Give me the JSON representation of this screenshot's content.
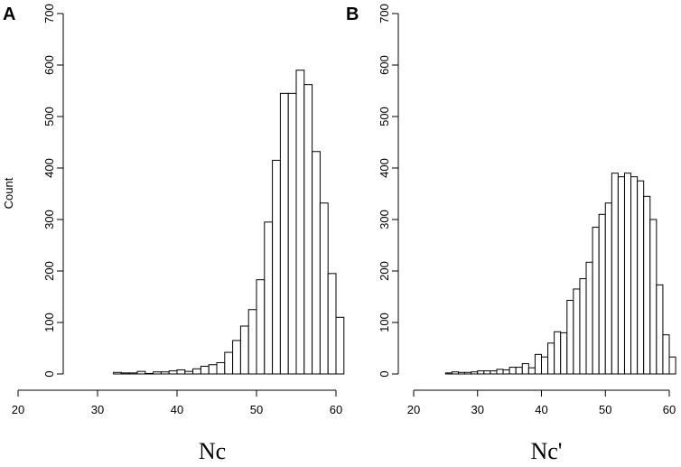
{
  "chart_data": [
    {
      "type": "bar",
      "panel_label": "A",
      "xlabel": "Nc",
      "ylabel": "Count",
      "xlim": [
        20,
        61
      ],
      "ylim": [
        0,
        700
      ],
      "xticks": [
        "20",
        "30",
        "40",
        "50",
        "60"
      ],
      "yticks": [
        "0",
        "100",
        "200",
        "300",
        "400",
        "500",
        "600",
        "700"
      ],
      "bin_width": 1,
      "bins": [
        {
          "x0": 32,
          "count": 3
        },
        {
          "x0": 33,
          "count": 2
        },
        {
          "x0": 34,
          "count": 2
        },
        {
          "x0": 35,
          "count": 5
        },
        {
          "x0": 36,
          "count": 1
        },
        {
          "x0": 37,
          "count": 4
        },
        {
          "x0": 38,
          "count": 4
        },
        {
          "x0": 39,
          "count": 6
        },
        {
          "x0": 40,
          "count": 8
        },
        {
          "x0": 41,
          "count": 5
        },
        {
          "x0": 42,
          "count": 10
        },
        {
          "x0": 43,
          "count": 15
        },
        {
          "x0": 44,
          "count": 18
        },
        {
          "x0": 45,
          "count": 22
        },
        {
          "x0": 46,
          "count": 42
        },
        {
          "x0": 47,
          "count": 65
        },
        {
          "x0": 48,
          "count": 93
        },
        {
          "x0": 49,
          "count": 125
        },
        {
          "x0": 50,
          "count": 183
        },
        {
          "x0": 51,
          "count": 295
        },
        {
          "x0": 52,
          "count": 415
        },
        {
          "x0": 53,
          "count": 545
        },
        {
          "x0": 54,
          "count": 545
        },
        {
          "x0": 55,
          "count": 590
        },
        {
          "x0": 56,
          "count": 562
        },
        {
          "x0": 57,
          "count": 432
        },
        {
          "x0": 58,
          "count": 332
        },
        {
          "x0": 59,
          "count": 195
        },
        {
          "x0": 60,
          "count": 110
        }
      ]
    },
    {
      "type": "bar",
      "panel_label": "B",
      "xlabel": "Nc'",
      "ylabel": "",
      "xlim": [
        20,
        61
      ],
      "ylim": [
        0,
        700
      ],
      "xticks": [
        "20",
        "30",
        "40",
        "50",
        "60"
      ],
      "yticks": [
        "0",
        "100",
        "200",
        "300",
        "400",
        "500",
        "600",
        "700"
      ],
      "bin_width": 1,
      "bins": [
        {
          "x0": 25,
          "count": 2
        },
        {
          "x0": 26,
          "count": 4
        },
        {
          "x0": 27,
          "count": 3
        },
        {
          "x0": 28,
          "count": 3
        },
        {
          "x0": 29,
          "count": 4
        },
        {
          "x0": 30,
          "count": 6
        },
        {
          "x0": 31,
          "count": 6
        },
        {
          "x0": 32,
          "count": 6
        },
        {
          "x0": 33,
          "count": 9
        },
        {
          "x0": 34,
          "count": 8
        },
        {
          "x0": 35,
          "count": 13
        },
        {
          "x0": 36,
          "count": 13
        },
        {
          "x0": 37,
          "count": 20
        },
        {
          "x0": 38,
          "count": 12
        },
        {
          "x0": 39,
          "count": 38
        },
        {
          "x0": 40,
          "count": 33
        },
        {
          "x0": 41,
          "count": 60
        },
        {
          "x0": 42,
          "count": 82
        },
        {
          "x0": 43,
          "count": 80
        },
        {
          "x0": 44,
          "count": 143
        },
        {
          "x0": 45,
          "count": 165
        },
        {
          "x0": 46,
          "count": 185
        },
        {
          "x0": 47,
          "count": 217
        },
        {
          "x0": 48,
          "count": 285
        },
        {
          "x0": 49,
          "count": 310
        },
        {
          "x0": 50,
          "count": 332
        },
        {
          "x0": 51,
          "count": 390
        },
        {
          "x0": 52,
          "count": 383
        },
        {
          "x0": 53,
          "count": 390
        },
        {
          "x0": 54,
          "count": 383
        },
        {
          "x0": 55,
          "count": 375
        },
        {
          "x0": 56,
          "count": 345
        },
        {
          "x0": 57,
          "count": 300
        },
        {
          "x0": 58,
          "count": 173
        },
        {
          "x0": 59,
          "count": 76
        },
        {
          "x0": 60,
          "count": 33
        }
      ]
    }
  ]
}
